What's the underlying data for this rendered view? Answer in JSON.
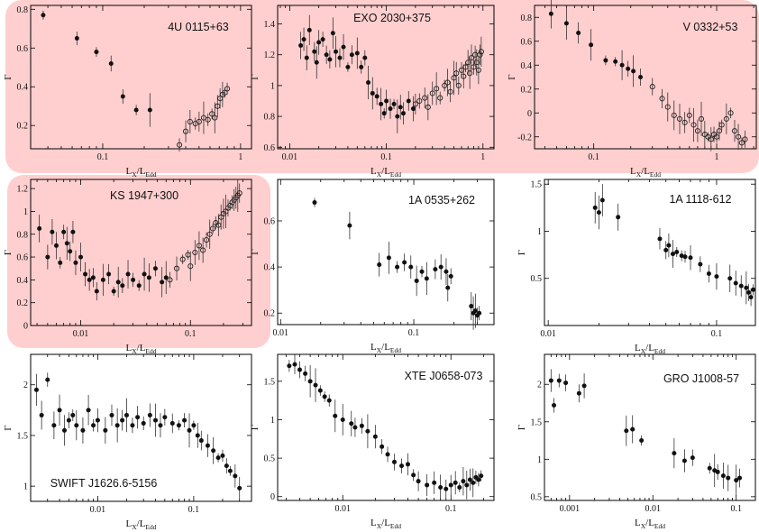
{
  "figure": {
    "x_axis_label": "L_X/L_Edd",
    "y_axis_label": "Γ"
  },
  "chart_data": [
    {
      "type": "scatter",
      "title": "4U 0115+63",
      "x_scale": "log",
      "xlim": [
        0.03,
        1.2
      ],
      "ylim": [
        0.08,
        0.82
      ],
      "xticks": [
        0.1,
        1
      ],
      "xtick_labels": [
        "0.1",
        "1"
      ],
      "yticks": [
        0.2,
        0.4,
        0.6,
        0.8
      ],
      "ytick_labels": [
        "0.2",
        "0.4",
        "0.6",
        "0.8"
      ],
      "xlabel": "L_X/L_Edd",
      "ylabel": "Γ",
      "series": [
        {
          "marker": "filled",
          "x": [
            0.037,
            0.065,
            0.09,
            0.115,
            0.14,
            0.175,
            0.22
          ],
          "y": [
            0.77,
            0.65,
            0.58,
            0.52,
            0.35,
            0.28,
            0.28
          ]
        },
        {
          "marker": "open",
          "x": [
            0.36,
            0.4,
            0.43,
            0.47,
            0.5,
            0.54,
            0.58,
            0.62,
            0.65,
            0.68,
            0.71,
            0.74,
            0.77,
            0.8
          ],
          "y": [
            0.1,
            0.17,
            0.22,
            0.21,
            0.22,
            0.24,
            0.23,
            0.26,
            0.24,
            0.3,
            0.34,
            0.36,
            0.37,
            0.39
          ]
        }
      ]
    },
    {
      "type": "scatter",
      "title": "EXO 2030+375",
      "x_scale": "log",
      "xlim": [
        0.0075,
        1.3
      ],
      "ylim": [
        0.59,
        1.52
      ],
      "xticks": [
        0.01,
        0.1,
        1
      ],
      "xtick_labels": [
        "0.01",
        "0.1",
        "1"
      ],
      "yticks": [
        0.6,
        0.8,
        1.0,
        1.2,
        1.4
      ],
      "ytick_labels": [
        "0.6",
        "0.8",
        "1",
        "1.2",
        "1.4"
      ],
      "xlabel": "L_X/L_Edd",
      "ylabel": "Γ",
      "series": [
        {
          "marker": "filled",
          "x": [
            0.013,
            0.014,
            0.015,
            0.016,
            0.018,
            0.019,
            0.02,
            0.022,
            0.024,
            0.026,
            0.028,
            0.03,
            0.033,
            0.036,
            0.04,
            0.044,
            0.05,
            0.055,
            0.06,
            0.065,
            0.072,
            0.08,
            0.088,
            0.095,
            0.1,
            0.11,
            0.12,
            0.13,
            0.14,
            0.15,
            0.17,
            0.19
          ],
          "y": [
            1.26,
            1.3,
            1.18,
            1.36,
            1.22,
            1.15,
            1.28,
            1.3,
            1.2,
            1.17,
            1.34,
            1.22,
            1.18,
            1.25,
            1.12,
            1.2,
            1.21,
            1.12,
            1.18,
            1.02,
            0.95,
            0.93,
            0.88,
            0.82,
            0.9,
            0.85,
            0.88,
            0.8,
            0.86,
            0.82,
            0.9,
            0.85
          ]
        },
        {
          "marker": "open",
          "x": [
            0.2,
            0.22,
            0.25,
            0.27,
            0.3,
            0.33,
            0.36,
            0.4,
            0.43,
            0.46,
            0.5,
            0.53,
            0.56,
            0.6,
            0.63,
            0.66,
            0.7,
            0.73,
            0.76,
            0.8,
            0.83,
            0.86,
            0.9,
            0.93,
            0.96
          ],
          "y": [
            0.88,
            0.9,
            0.92,
            0.86,
            0.95,
            0.98,
            0.92,
            1.0,
            1.02,
            0.96,
            1.05,
            1.08,
            1.0,
            1.1,
            1.06,
            1.12,
            1.15,
            1.08,
            1.18,
            1.12,
            1.2,
            1.15,
            1.1,
            1.2,
            1.22
          ]
        }
      ]
    },
    {
      "type": "scatter",
      "title": "V 0332+53",
      "x_scale": "log",
      "xlim": [
        0.033,
        2.1
      ],
      "ylim": [
        -0.3,
        0.9
      ],
      "xticks": [
        0.1,
        1
      ],
      "xtick_labels": [
        "0.1",
        "1"
      ],
      "yticks": [
        -0.2,
        0,
        0.2,
        0.4,
        0.6,
        0.8
      ],
      "ytick_labels": [
        "-0.2",
        "0",
        "0.2",
        "0.4",
        "0.6",
        "0.8"
      ],
      "xlabel": "L_X/L_Edd",
      "ylabel": "Γ",
      "series": [
        {
          "marker": "filled",
          "x": [
            0.045,
            0.06,
            0.075,
            0.095,
            0.125,
            0.15,
            0.17,
            0.19,
            0.21,
            0.24
          ],
          "y": [
            0.83,
            0.75,
            0.67,
            0.57,
            0.44,
            0.43,
            0.4,
            0.37,
            0.35,
            0.3
          ]
        },
        {
          "marker": "open",
          "x": [
            0.3,
            0.36,
            0.4,
            0.45,
            0.5,
            0.55,
            0.6,
            0.65,
            0.7,
            0.75,
            0.8,
            0.85,
            0.9,
            0.95,
            1.0,
            1.05,
            1.1,
            1.2,
            1.3,
            1.4,
            1.5,
            1.6,
            1.7
          ],
          "y": [
            0.22,
            0.12,
            0.05,
            -0.02,
            -0.05,
            -0.08,
            -0.02,
            -0.1,
            -0.15,
            -0.05,
            -0.18,
            -0.2,
            -0.22,
            -0.18,
            -0.2,
            -0.15,
            -0.1,
            -0.05,
            0.0,
            -0.15,
            -0.2,
            -0.25,
            -0.22
          ]
        }
      ]
    },
    {
      "type": "scatter",
      "title": "KS 1947+300",
      "x_scale": "log",
      "xlim": [
        0.0035,
        0.36
      ],
      "ylim": [
        0.0,
        1.28
      ],
      "xticks": [
        0.01,
        0.1
      ],
      "xtick_labels": [
        "0.01",
        "0.1"
      ],
      "yticks": [
        0,
        0.2,
        0.4,
        0.6,
        0.8,
        1.0,
        1.2
      ],
      "ytick_labels": [
        "0",
        "0.2",
        "0.4",
        "0.6",
        "0.8",
        "1",
        "1.2"
      ],
      "xlabel": "L_X/L_Edd",
      "ylabel": "Γ",
      "series": [
        {
          "marker": "filled",
          "x": [
            0.0042,
            0.005,
            0.0055,
            0.006,
            0.0065,
            0.007,
            0.0075,
            0.008,
            0.0085,
            0.009,
            0.01,
            0.011,
            0.012,
            0.013,
            0.014,
            0.016,
            0.018,
            0.02,
            0.022,
            0.024,
            0.027,
            0.03,
            0.034,
            0.038,
            0.042,
            0.048,
            0.055,
            0.06
          ],
          "y": [
            0.85,
            0.6,
            0.82,
            0.7,
            0.55,
            0.82,
            0.72,
            0.65,
            0.82,
            0.55,
            0.6,
            0.45,
            0.4,
            0.42,
            0.3,
            0.4,
            0.45,
            0.3,
            0.38,
            0.35,
            0.45,
            0.4,
            0.35,
            0.45,
            0.42,
            0.5,
            0.38,
            0.42
          ]
        },
        {
          "marker": "open",
          "x": [
            0.065,
            0.075,
            0.085,
            0.095,
            0.1,
            0.11,
            0.12,
            0.13,
            0.14,
            0.15,
            0.16,
            0.17,
            0.18,
            0.19,
            0.2,
            0.21,
            0.22,
            0.23,
            0.24,
            0.25,
            0.26,
            0.27,
            0.28
          ],
          "y": [
            0.4,
            0.5,
            0.58,
            0.62,
            0.52,
            0.64,
            0.7,
            0.66,
            0.75,
            0.8,
            0.85,
            0.9,
            0.88,
            0.95,
            0.98,
            1.0,
            1.03,
            1.05,
            1.08,
            1.1,
            1.12,
            1.14,
            1.16
          ]
        }
      ]
    },
    {
      "type": "scatter",
      "title": "1A 0535+262",
      "x_scale": "log",
      "xlim": [
        0.0095,
        0.4
      ],
      "ylim": [
        0.15,
        0.78
      ],
      "xticks": [
        0.01,
        0.1
      ],
      "xtick_labels": [
        "0.01",
        "0.1"
      ],
      "yticks": [
        0.2,
        0.4,
        0.6
      ],
      "ytick_labels": [
        "0.2",
        "0.4",
        "0.6"
      ],
      "xlabel": "L_X/L_Edd",
      "ylabel": "Γ",
      "series": [
        {
          "marker": "filled",
          "x": [
            0.018,
            0.033,
            0.055,
            0.065,
            0.075,
            0.085,
            0.095,
            0.105,
            0.115,
            0.125,
            0.145,
            0.16,
            0.175,
            0.18,
            0.19,
            0.27,
            0.28,
            0.29,
            0.3,
            0.31
          ],
          "y": [
            0.68,
            0.58,
            0.41,
            0.44,
            0.4,
            0.42,
            0.4,
            0.34,
            0.38,
            0.35,
            0.39,
            0.4,
            0.38,
            0.31,
            0.36,
            0.23,
            0.2,
            0.21,
            0.19,
            0.2
          ]
        }
      ]
    },
    {
      "type": "scatter",
      "title": "1A 1118-612",
      "x_scale": "log",
      "xlim": [
        0.0095,
        0.17
      ],
      "ylim": [
        0.0,
        1.55
      ],
      "xticks": [
        0.01,
        0.1
      ],
      "xtick_labels": [
        "0.01",
        "0.1"
      ],
      "yticks": [
        0.5,
        1.0,
        1.5
      ],
      "ytick_labels": [
        "0.5",
        "1",
        "1.5"
      ],
      "xlabel": "L_X/L_Edd",
      "ylabel": "Γ",
      "series": [
        {
          "marker": "filled",
          "x": [
            0.019,
            0.02,
            0.021,
            0.026,
            0.046,
            0.05,
            0.052,
            0.055,
            0.058,
            0.062,
            0.065,
            0.07,
            0.08,
            0.09,
            0.1,
            0.12,
            0.13,
            0.14,
            0.15,
            0.155,
            0.16,
            0.165
          ],
          "y": [
            1.25,
            1.2,
            1.33,
            1.15,
            0.92,
            0.8,
            0.85,
            0.76,
            0.78,
            0.74,
            0.73,
            0.72,
            0.65,
            0.55,
            0.52,
            0.5,
            0.45,
            0.42,
            0.4,
            0.35,
            0.3,
            0.38
          ]
        }
      ]
    },
    {
      "type": "scatter",
      "title": "SWIFT J1626.6-5156",
      "x_scale": "log",
      "xlim": [
        0.002,
        0.4
      ],
      "ylim": [
        0.85,
        2.3
      ],
      "xticks": [
        0.01,
        0.1
      ],
      "xtick_labels": [
        "0.01",
        "0.1"
      ],
      "yticks": [
        1.0,
        1.5,
        2.0
      ],
      "ytick_labels": [
        "1",
        "1.5",
        "2"
      ],
      "xlabel": "L_X/L_Edd",
      "ylabel": "Γ",
      "series": [
        {
          "marker": "filled",
          "x": [
            0.0023,
            0.0026,
            0.003,
            0.0035,
            0.004,
            0.0045,
            0.005,
            0.0055,
            0.006,
            0.007,
            0.008,
            0.009,
            0.01,
            0.012,
            0.014,
            0.016,
            0.018,
            0.02,
            0.023,
            0.026,
            0.03,
            0.035,
            0.04,
            0.045,
            0.05,
            0.06,
            0.07,
            0.08,
            0.09,
            0.1,
            0.11,
            0.12,
            0.14,
            0.16,
            0.18,
            0.2,
            0.22,
            0.24,
            0.27,
            0.3
          ],
          "y": [
            1.95,
            1.7,
            2.05,
            1.6,
            1.75,
            1.55,
            1.65,
            1.7,
            1.6,
            1.55,
            1.75,
            1.6,
            1.65,
            1.55,
            1.7,
            1.6,
            1.65,
            1.7,
            1.6,
            1.68,
            1.62,
            1.7,
            1.65,
            1.6,
            1.68,
            1.62,
            1.6,
            1.65,
            1.55,
            1.6,
            1.5,
            1.45,
            1.4,
            1.35,
            1.28,
            1.3,
            1.2,
            1.15,
            1.1,
            0.98
          ]
        }
      ]
    },
    {
      "type": "scatter",
      "title": "XTE J0658-073",
      "x_scale": "log",
      "xlim": [
        0.0025,
        0.25
      ],
      "ylim": [
        -0.05,
        1.85
      ],
      "xticks": [
        0.01,
        0.1
      ],
      "xtick_labels": [
        "0.01",
        "0.1"
      ],
      "yticks": [
        0,
        0.5,
        1.0,
        1.5
      ],
      "ytick_labels": [
        "0",
        "0.5",
        "1",
        "1.5"
      ],
      "xlabel": "L_X/L_Edd",
      "ylabel": "Γ",
      "series": [
        {
          "marker": "filled",
          "x": [
            0.0032,
            0.0036,
            0.004,
            0.0045,
            0.005,
            0.0056,
            0.0062,
            0.0068,
            0.0075,
            0.0085,
            0.01,
            0.012,
            0.013,
            0.015,
            0.017,
            0.02,
            0.023,
            0.026,
            0.03,
            0.035,
            0.04,
            0.045,
            0.05,
            0.06,
            0.07,
            0.08,
            0.09,
            0.1,
            0.11,
            0.12,
            0.13,
            0.14,
            0.15,
            0.16,
            0.17,
            0.18,
            0.19
          ],
          "y": [
            1.7,
            1.72,
            1.65,
            1.6,
            1.5,
            1.45,
            1.38,
            1.3,
            1.25,
            1.05,
            1.0,
            0.95,
            0.9,
            0.92,
            0.85,
            0.78,
            0.65,
            0.55,
            0.45,
            0.4,
            0.42,
            0.28,
            0.2,
            0.15,
            0.18,
            0.12,
            0.1,
            0.15,
            0.18,
            0.12,
            0.2,
            0.15,
            0.22,
            0.18,
            0.25,
            0.22,
            0.27
          ]
        }
      ]
    },
    {
      "type": "scatter",
      "title": "GRO J1008-57",
      "x_scale": "log",
      "xlim": [
        0.0005,
        0.17
      ],
      "ylim": [
        0.45,
        2.4
      ],
      "xticks": [
        0.001,
        0.01,
        0.1
      ],
      "xtick_labels": [
        "0.001",
        "0.01",
        "0.1"
      ],
      "yticks": [
        0.5,
        1.0,
        1.5,
        2.0
      ],
      "ytick_labels": [
        "0.5",
        "1",
        "1.5",
        "2"
      ],
      "xlabel": "L_X/L_Edd",
      "ylabel": "Γ",
      "series": [
        {
          "marker": "filled",
          "x": [
            0.0006,
            0.00065,
            0.00075,
            0.0009,
            0.0013,
            0.0015,
            0.0048,
            0.0057,
            0.0073,
            0.018,
            0.024,
            0.03,
            0.048,
            0.055,
            0.06,
            0.07,
            0.08,
            0.1,
            0.11
          ],
          "y": [
            2.05,
            1.72,
            2.05,
            2.02,
            1.88,
            1.98,
            1.38,
            1.4,
            1.25,
            1.08,
            0.98,
            1.02,
            0.88,
            0.85,
            0.83,
            0.78,
            0.75,
            0.72,
            0.75
          ]
        }
      ]
    }
  ]
}
